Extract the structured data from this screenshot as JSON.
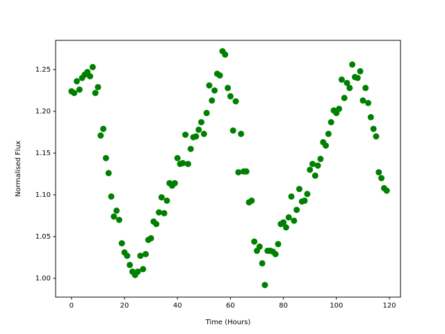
{
  "chart_data": {
    "type": "scatter",
    "xlabel": "Time (Hours)",
    "ylabel": "Normalised Flux",
    "color": "#008000",
    "x": [
      0,
      1,
      2,
      3,
      4,
      5,
      6,
      7,
      8,
      9,
      10,
      11,
      12,
      13,
      14,
      15,
      16,
      17,
      18,
      19,
      20,
      21,
      22,
      23,
      24,
      25,
      26,
      27,
      28,
      29,
      30,
      31,
      32,
      33,
      34,
      35,
      36,
      37,
      38,
      39,
      40,
      41,
      42,
      43,
      44,
      45,
      46,
      47,
      48,
      49,
      50,
      51,
      52,
      53,
      54,
      55,
      56,
      57,
      58,
      59,
      60,
      61,
      62,
      63,
      64,
      65,
      66,
      67,
      68,
      69,
      70,
      71,
      72,
      73,
      74,
      75,
      76,
      77,
      78,
      79,
      80,
      81,
      82,
      83,
      84,
      85,
      86,
      87,
      88,
      89,
      90,
      91,
      92,
      93,
      94,
      95,
      96,
      97,
      98,
      99,
      100,
      101,
      102,
      103,
      104,
      105,
      106,
      107,
      108,
      109,
      110,
      111,
      112,
      113,
      114,
      115,
      116,
      117,
      118,
      119
    ],
    "values": [
      1.224,
      1.222,
      1.236,
      1.226,
      1.24,
      1.244,
      1.247,
      1.242,
      1.253,
      1.222,
      1.229,
      1.171,
      1.179,
      1.144,
      1.126,
      1.098,
      1.074,
      1.081,
      1.07,
      1.042,
      1.031,
      1.027,
      1.016,
      1.008,
      1.004,
      1.008,
      1.027,
      1.011,
      1.029,
      1.046,
      1.048,
      1.068,
      1.065,
      1.079,
      1.097,
      1.078,
      1.093,
      1.114,
      1.111,
      1.114,
      1.144,
      1.137,
      1.138,
      1.172,
      1.137,
      1.155,
      1.169,
      1.17,
      1.178,
      1.187,
      1.173,
      1.198,
      1.231,
      1.213,
      1.225,
      1.245,
      1.243,
      1.272,
      1.268,
      1.228,
      1.218,
      1.177,
      1.212,
      1.127,
      1.173,
      1.128,
      1.128,
      1.091,
      1.093,
      1.044,
      1.033,
      1.038,
      1.018,
      0.992,
      1.033,
      1.033,
      1.032,
      1.029,
      1.041,
      1.065,
      1.067,
      1.061,
      1.073,
      1.098,
      1.069,
      1.082,
      1.107,
      1.092,
      1.093,
      1.101,
      1.13,
      1.137,
      1.123,
      1.135,
      1.143,
      1.163,
      1.159,
      1.173,
      1.187,
      1.201,
      1.198,
      1.203,
      1.238,
      1.216,
      1.234,
      1.228,
      1.256,
      1.241,
      1.24,
      1.248,
      1.213,
      1.228,
      1.21,
      1.193,
      1.179,
      1.17,
      1.127,
      1.12,
      1.108,
      1.105
    ],
    "xlim": [
      -6,
      124.2
    ],
    "ylim": [
      0.9775,
      1.285
    ],
    "xticks": [
      0,
      20,
      40,
      60,
      80,
      100,
      120
    ],
    "yticks": [
      {
        "value": 1.0,
        "label": "1.00"
      },
      1.05,
      {
        "value": 1.1,
        "label": "1.10"
      },
      1.15,
      {
        "value": 1.2,
        "label": "1.20"
      },
      1.25
    ]
  }
}
